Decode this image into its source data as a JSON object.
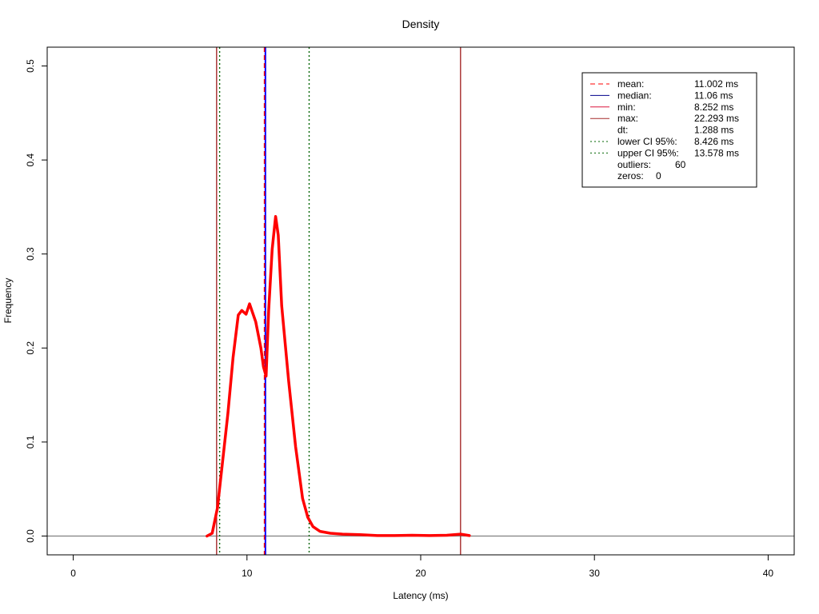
{
  "chart_data": {
    "type": "line",
    "title": "Density",
    "xlabel": "Latency (ms)",
    "ylabel": "Frequency",
    "xlim": [
      -1.5,
      41.5
    ],
    "ylim": [
      -0.02,
      0.52
    ],
    "x_ticks": [
      0,
      10,
      20,
      30,
      40
    ],
    "x_tick_labels": [
      "0",
      "10",
      "20",
      "30",
      "40"
    ],
    "y_ticks": [
      0.0,
      0.1,
      0.2,
      0.3,
      0.4,
      0.5
    ],
    "y_tick_labels": [
      "0.0",
      "0.1",
      "0.2",
      "0.3",
      "0.4",
      "0.5"
    ],
    "grid": false,
    "legend_position": "top-right",
    "density": {
      "color": "#ff0000",
      "x": [
        7.7,
        8.0,
        8.3,
        8.6,
        8.9,
        9.2,
        9.5,
        9.7,
        9.95,
        10.15,
        10.5,
        10.8,
        10.95,
        11.1,
        11.25,
        11.45,
        11.65,
        11.8,
        12.0,
        12.4,
        12.8,
        13.2,
        13.5,
        13.8,
        14.2,
        14.8,
        15.5,
        16.5,
        17.5,
        18.5,
        19.5,
        20.5,
        21.5,
        22.3,
        22.8
      ],
      "y": [
        0.0,
        0.003,
        0.03,
        0.08,
        0.13,
        0.19,
        0.235,
        0.24,
        0.236,
        0.247,
        0.228,
        0.2,
        0.18,
        0.17,
        0.24,
        0.305,
        0.34,
        0.32,
        0.245,
        0.165,
        0.095,
        0.04,
        0.02,
        0.01,
        0.005,
        0.003,
        0.002,
        0.0015,
        0.0005,
        0.0005,
        0.0008,
        0.0005,
        0.0008,
        0.002,
        0.0005
      ]
    },
    "reference_lines": [
      {
        "name": "min",
        "x": 8.252,
        "color": "#a52a2a",
        "style": "solid"
      },
      {
        "name": "lower CI 95%",
        "x": 8.426,
        "color": "#006400",
        "style": "dotted"
      },
      {
        "name": "median",
        "x": 11.06,
        "color": "#0000ff",
        "style": "solid"
      },
      {
        "name": "mean",
        "x": 11.002,
        "color": "#ff0000",
        "style": "dashed"
      },
      {
        "name": "upper CI 95%",
        "x": 13.578,
        "color": "#006400",
        "style": "dotted"
      },
      {
        "name": "max",
        "x": 22.293,
        "color": "#a52a2a",
        "style": "solid"
      }
    ],
    "zero_line_color": "#808080",
    "legend": [
      {
        "label": "mean:",
        "value": "11.002 ms",
        "style": "dashed",
        "color": "#ff0000"
      },
      {
        "label": "median:",
        "value": "11.06 ms",
        "style": "solid",
        "color": "#00008b"
      },
      {
        "label": "min:",
        "value": "8.252 ms",
        "style": "solid",
        "color": "#dc143c"
      },
      {
        "label": "max:",
        "value": "22.293 ms",
        "style": "solid",
        "color": "#a52a2a"
      },
      {
        "label": "dt:",
        "value": "1.288 ms",
        "style": "none",
        "color": ""
      },
      {
        "label": "lower CI 95%:",
        "value": "8.426 ms",
        "style": "dotted",
        "color": "#006400"
      },
      {
        "label": "upper CI 95%:",
        "value": "13.578 ms",
        "style": "dotted",
        "color": "#006400"
      },
      {
        "label": "outliers:",
        "value": "60",
        "style": "none",
        "color": ""
      },
      {
        "label": "zeros:",
        "value": "0",
        "style": "none",
        "color": ""
      }
    ]
  }
}
